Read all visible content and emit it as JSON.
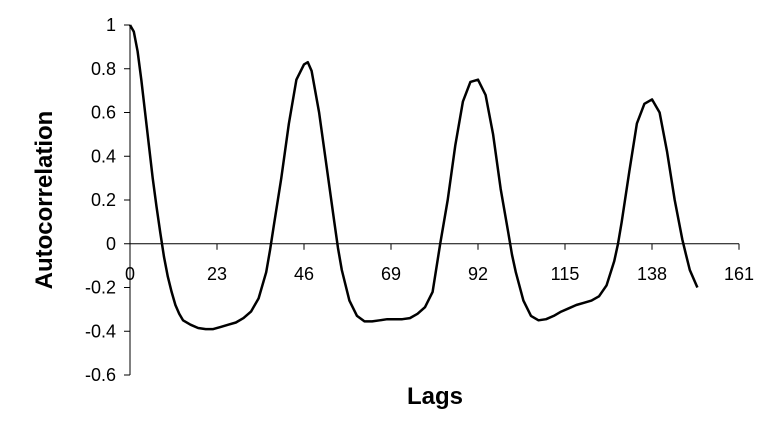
{
  "chart_data": {
    "type": "line",
    "x_label": "Lags",
    "y_label": "Autocorrelation",
    "xlim": [
      0,
      161
    ],
    "xticks": [
      0,
      23,
      46,
      69,
      92,
      115,
      138,
      161
    ],
    "ylim": [
      -0.6,
      1
    ],
    "yticks": [
      -0.6,
      -0.4,
      -0.2,
      0,
      0.2,
      0.4,
      0.6,
      0.8,
      1
    ],
    "color": "#000000",
    "x": [
      0,
      1,
      2,
      3,
      4,
      5,
      6,
      7,
      8,
      9,
      10,
      11,
      12,
      13,
      14,
      16,
      18,
      20,
      22,
      24,
      26,
      28,
      30,
      32,
      34,
      36,
      37,
      38,
      40,
      42,
      44,
      46,
      47,
      48,
      50,
      52,
      54,
      55,
      56,
      58,
      60,
      62,
      64,
      66,
      68,
      70,
      72,
      74,
      76,
      78,
      80,
      82,
      84,
      86,
      88,
      90,
      92,
      94,
      96,
      98,
      100,
      101,
      102,
      104,
      106,
      108,
      110,
      112,
      114,
      116,
      118,
      120,
      122,
      124,
      126,
      128,
      129,
      130,
      132,
      134,
      136,
      138,
      140,
      142,
      144,
      146,
      147,
      148,
      150
    ],
    "values": [
      1.0,
      0.97,
      0.88,
      0.75,
      0.6,
      0.45,
      0.3,
      0.17,
      0.05,
      -0.06,
      -0.15,
      -0.22,
      -0.28,
      -0.32,
      -0.35,
      -0.37,
      -0.385,
      -0.39,
      -0.39,
      -0.38,
      -0.37,
      -0.36,
      -0.34,
      -0.31,
      -0.25,
      -0.13,
      -0.03,
      0.08,
      0.3,
      0.55,
      0.75,
      0.82,
      0.83,
      0.79,
      0.6,
      0.35,
      0.1,
      -0.02,
      -0.12,
      -0.26,
      -0.33,
      -0.355,
      -0.355,
      -0.35,
      -0.345,
      -0.345,
      -0.345,
      -0.34,
      -0.32,
      -0.29,
      -0.22,
      0.0,
      0.2,
      0.45,
      0.65,
      0.74,
      0.75,
      0.68,
      0.5,
      0.25,
      0.05,
      -0.05,
      -0.13,
      -0.26,
      -0.33,
      -0.35,
      -0.345,
      -0.33,
      -0.31,
      -0.295,
      -0.28,
      -0.27,
      -0.26,
      -0.24,
      -0.19,
      -0.08,
      0.0,
      0.1,
      0.33,
      0.55,
      0.64,
      0.66,
      0.6,
      0.42,
      0.2,
      0.02,
      -0.05,
      -0.12,
      -0.2
    ]
  }
}
